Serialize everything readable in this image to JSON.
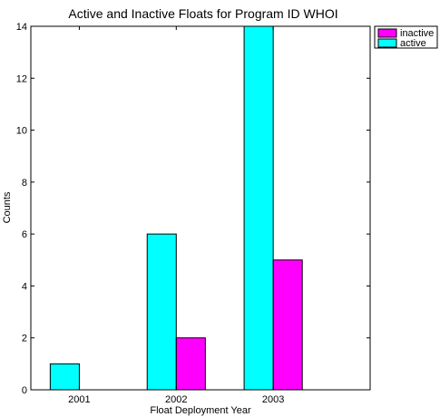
{
  "chart_data": {
    "type": "bar",
    "title": "Active and Inactive Floats for Program ID WHOI",
    "xlabel": "Float Deployment Year",
    "ylabel": "Counts",
    "categories": [
      "2001",
      "2002",
      "2003"
    ],
    "series": [
      {
        "name": "active",
        "color": "#00ffff",
        "values": [
          1,
          6,
          14
        ]
      },
      {
        "name": "inactive",
        "color": "#ff00ff",
        "values": [
          0,
          2,
          5
        ]
      }
    ],
    "legend_order": [
      "inactive",
      "active"
    ],
    "legend_placement": "top-right, outside plot",
    "ylim": [
      0,
      14
    ],
    "yticks": [
      0,
      2,
      4,
      6,
      8,
      10,
      12,
      14
    ],
    "grid": false
  }
}
